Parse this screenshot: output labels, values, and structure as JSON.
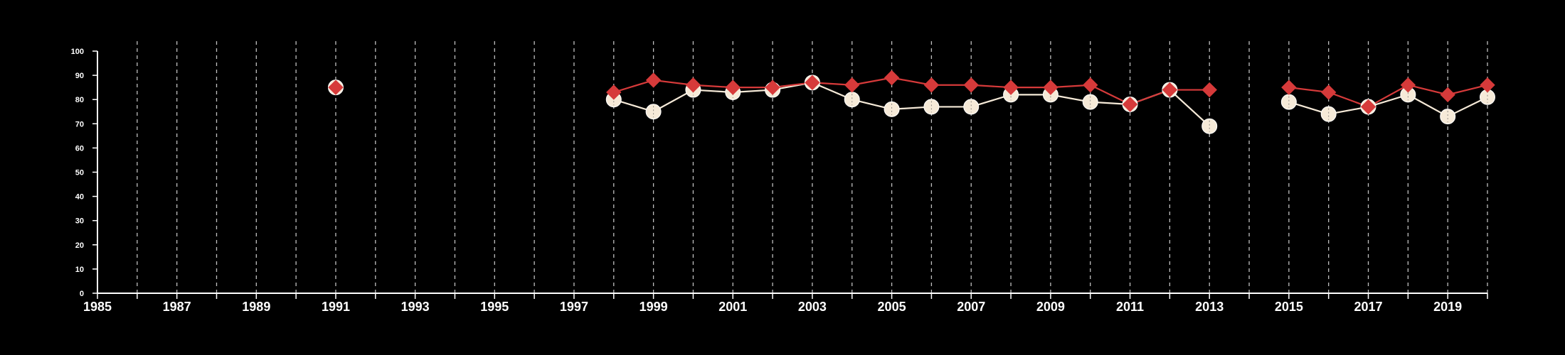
{
  "chart_data": {
    "type": "line",
    "title": "",
    "xlabel": "",
    "ylabel": "",
    "xlim": [
      1985,
      2020
    ],
    "ylim": [
      0,
      100
    ],
    "x_ticks": [
      1985,
      1987,
      1989,
      1991,
      1993,
      1995,
      1997,
      1999,
      2001,
      2003,
      2005,
      2007,
      2009,
      2011,
      2013,
      2015,
      2017,
      2019
    ],
    "y_ticks": [
      0,
      10,
      20,
      30,
      40,
      50,
      60,
      70,
      80,
      90,
      100
    ],
    "grid": {
      "vertical_dashed_lines_every_year": true,
      "horizontal": false
    },
    "colors": {
      "background": "#000000",
      "axis": "#ffffff",
      "grid": "#bfbfbf",
      "white_series": "#f6ead8",
      "red_series": "#d63a3a"
    },
    "series": [
      {
        "marker": "circle",
        "color": "#f6ead8",
        "points": [
          {
            "x": 1991,
            "y": 85
          },
          {
            "x": 1998,
            "y": 80
          },
          {
            "x": 1999,
            "y": 75
          },
          {
            "x": 2000,
            "y": 84
          },
          {
            "x": 2001,
            "y": 83
          },
          {
            "x": 2002,
            "y": 84
          },
          {
            "x": 2003,
            "y": 87
          },
          {
            "x": 2004,
            "y": 80
          },
          {
            "x": 2005,
            "y": 76
          },
          {
            "x": 2006,
            "y": 77
          },
          {
            "x": 2007,
            "y": 77
          },
          {
            "x": 2008,
            "y": 82
          },
          {
            "x": 2009,
            "y": 82
          },
          {
            "x": 2010,
            "y": 79
          },
          {
            "x": 2011,
            "y": 78
          },
          {
            "x": 2012,
            "y": 84
          },
          {
            "x": 2013,
            "y": 69
          },
          {
            "x": 2015,
            "y": 79
          },
          {
            "x": 2016,
            "y": 74
          },
          {
            "x": 2017,
            "y": 77
          },
          {
            "x": 2018,
            "y": 82
          },
          {
            "x": 2019,
            "y": 73
          },
          {
            "x": 2020,
            "y": 81
          }
        ]
      },
      {
        "marker": "diamond",
        "color": "#d63a3a",
        "points": [
          {
            "x": 1991,
            "y": 85
          },
          {
            "x": 1998,
            "y": 83
          },
          {
            "x": 1999,
            "y": 88
          },
          {
            "x": 2000,
            "y": 86
          },
          {
            "x": 2001,
            "y": 85
          },
          {
            "x": 2002,
            "y": 85
          },
          {
            "x": 2003,
            "y": 87
          },
          {
            "x": 2004,
            "y": 86
          },
          {
            "x": 2005,
            "y": 89
          },
          {
            "x": 2006,
            "y": 86
          },
          {
            "x": 2007,
            "y": 86
          },
          {
            "x": 2008,
            "y": 85
          },
          {
            "x": 2009,
            "y": 85
          },
          {
            "x": 2010,
            "y": 86
          },
          {
            "x": 2011,
            "y": 78
          },
          {
            "x": 2012,
            "y": 84
          },
          {
            "x": 2013,
            "y": 84
          },
          {
            "x": 2015,
            "y": 85
          },
          {
            "x": 2016,
            "y": 83
          },
          {
            "x": 2017,
            "y": 77
          },
          {
            "x": 2018,
            "y": 86
          },
          {
            "x": 2019,
            "y": 82
          },
          {
            "x": 2020,
            "y": 86
          }
        ]
      }
    ]
  }
}
